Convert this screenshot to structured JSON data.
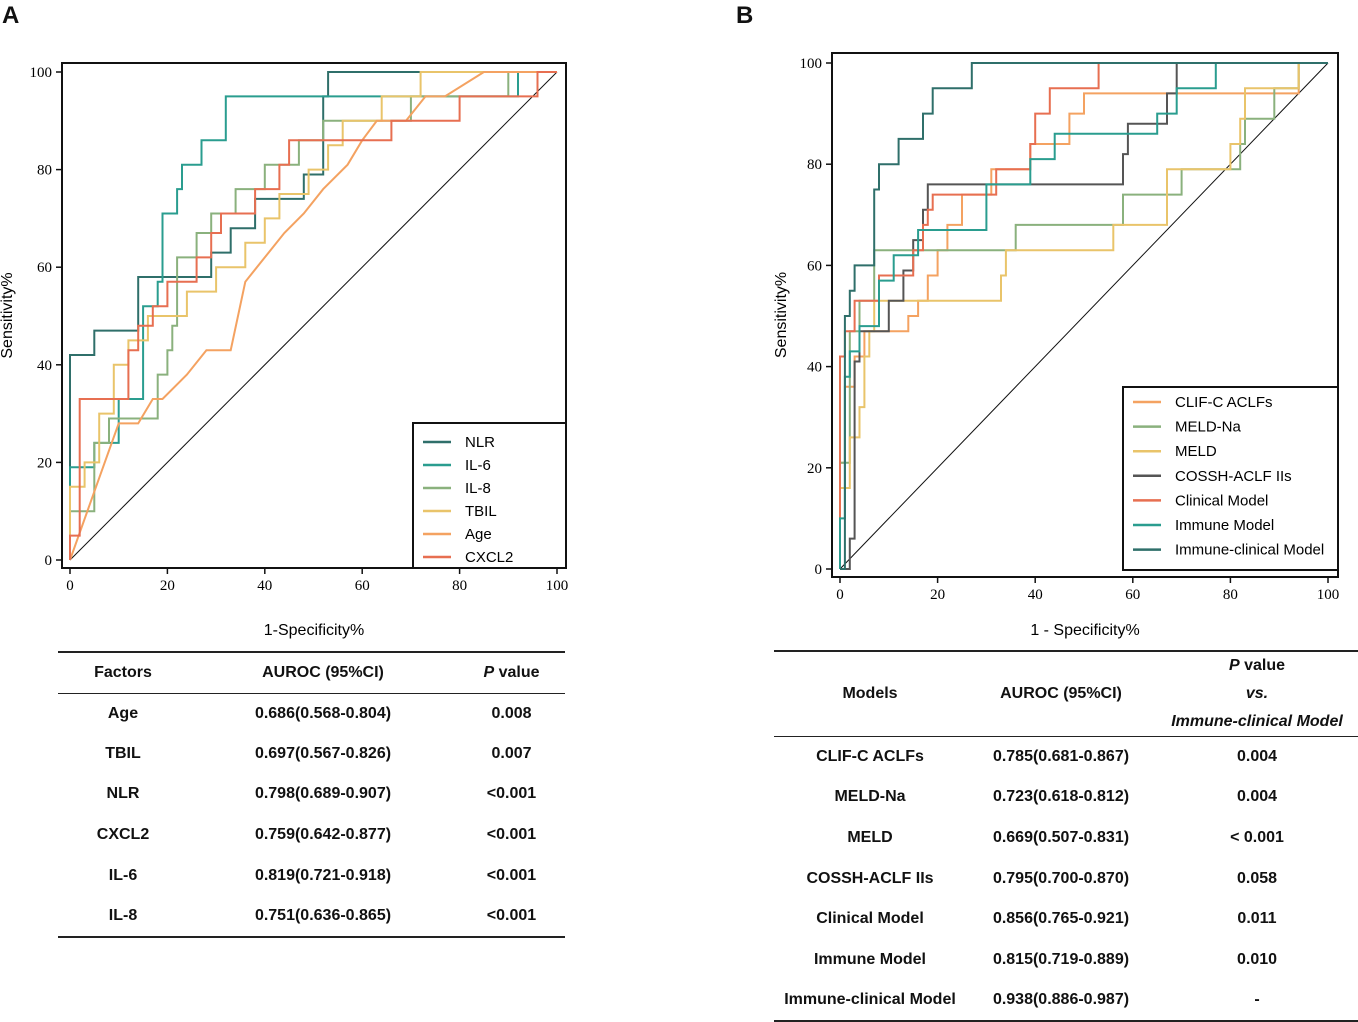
{
  "panels": {
    "a": "A",
    "b": "B"
  },
  "colors": {
    "NLR": "#2f6f6a",
    "IL-6": "#2a9d8f",
    "IL-8": "#8ab17d",
    "TBIL": "#e9c46a",
    "Age": "#f4a261",
    "CXCL2": "#e76f51",
    "CLIF-C ACLFs": "#f4a261",
    "MELD-Na": "#8ab17d",
    "MELD": "#e9c46a",
    "COSSH-ACLF IIs": "#555555",
    "Clinical Model": "#e76f51",
    "Immune Model": "#2a9d8f",
    "Immune-clinical Model": "#2f6f6a"
  },
  "chart_data": [
    {
      "type": "line",
      "title": "",
      "xlabel": "1-Specificity%",
      "ylabel": "Sensitivity%",
      "xlim": [
        0,
        100
      ],
      "ylim": [
        0,
        100
      ],
      "xticks": [
        "0",
        "20",
        "40",
        "60",
        "80",
        "100"
      ],
      "yticks": [
        "0",
        "20",
        "40",
        "60",
        "80",
        "100"
      ],
      "legend_position": "bottom-right",
      "series": [
        {
          "name": "NLR",
          "x": [
            0,
            0,
            5,
            5,
            14,
            14,
            19,
            19,
            29,
            29,
            33,
            33,
            38,
            38,
            48,
            48,
            52,
            52,
            53,
            53,
            95,
            95,
            100
          ],
          "y": [
            0,
            42,
            42,
            47,
            47,
            58,
            58,
            58,
            58,
            63,
            63,
            68,
            68,
            74,
            74,
            79,
            79,
            95,
            95,
            100,
            100,
            100,
            100
          ]
        },
        {
          "name": "IL-6",
          "x": [
            0,
            0,
            5,
            5,
            10,
            10,
            15,
            15,
            18,
            18,
            19,
            19,
            22,
            22,
            23,
            23,
            27,
            27,
            32,
            32,
            92,
            92,
            100
          ],
          "y": [
            0,
            19,
            19,
            24,
            24,
            33,
            33,
            52,
            52,
            57,
            57,
            71,
            71,
            76,
            76,
            81,
            81,
            86,
            86,
            95,
            95,
            100,
            100
          ]
        },
        {
          "name": "IL-8",
          "x": [
            0,
            0,
            5,
            5,
            8,
            8,
            12,
            12,
            18,
            18,
            20,
            20,
            21,
            21,
            22,
            22,
            26,
            26,
            29,
            29,
            34,
            34,
            40,
            40,
            47,
            47,
            52,
            52,
            54,
            54,
            70,
            70,
            90,
            90,
            95,
            95,
            100
          ],
          "y": [
            0,
            10,
            10,
            24,
            24,
            29,
            29,
            29,
            29,
            38,
            38,
            43,
            43,
            48,
            48,
            62,
            62,
            67,
            67,
            71,
            71,
            76,
            76,
            81,
            81,
            86,
            86,
            90,
            90,
            90,
            90,
            95,
            95,
            100,
            100,
            100,
            100
          ]
        },
        {
          "name": "TBIL",
          "x": [
            0,
            0,
            3,
            3,
            6,
            6,
            9,
            9,
            12,
            12,
            16,
            16,
            19,
            19,
            24,
            24,
            30,
            30,
            36,
            36,
            40,
            40,
            43,
            43,
            49,
            49,
            53,
            53,
            56,
            56,
            64,
            64,
            72,
            72,
            86,
            86,
            100
          ],
          "y": [
            0,
            15,
            15,
            20,
            20,
            30,
            30,
            40,
            40,
            45,
            45,
            50,
            50,
            50,
            50,
            55,
            55,
            60,
            60,
            65,
            65,
            70,
            70,
            75,
            75,
            80,
            80,
            85,
            85,
            90,
            90,
            95,
            95,
            100,
            100,
            100,
            100
          ]
        },
        {
          "name": "Age",
          "x": [
            0,
            5,
            5,
            10,
            10,
            14,
            14,
            17,
            17,
            19,
            19,
            24,
            24,
            28,
            28,
            33,
            33,
            36,
            36,
            40,
            40,
            44,
            44,
            48,
            48,
            52,
            52,
            57,
            57,
            60,
            60,
            63,
            63,
            69,
            69,
            73,
            73,
            77,
            77,
            85,
            85,
            100
          ],
          "y": [
            0,
            14,
            14,
            28,
            28,
            28,
            28,
            33,
            33,
            33,
            33,
            38,
            38,
            43,
            43,
            43,
            43,
            57,
            57,
            62,
            62,
            67,
            67,
            71,
            71,
            76,
            76,
            81,
            81,
            86,
            86,
            90,
            90,
            90,
            90,
            95,
            95,
            95,
            95,
            100,
            100,
            100
          ]
        },
        {
          "name": "CXCL2",
          "x": [
            0,
            0,
            2,
            2,
            12,
            12,
            14,
            14,
            17,
            17,
            20,
            20,
            26,
            26,
            29,
            29,
            31,
            31,
            38,
            38,
            43,
            43,
            45,
            45,
            53,
            53,
            57,
            57,
            63,
            63,
            66,
            66,
            72,
            72,
            80,
            80,
            96,
            96,
            100
          ],
          "y": [
            0,
            5,
            5,
            33,
            33,
            43,
            43,
            48,
            48,
            52,
            52,
            57,
            57,
            62,
            62,
            67,
            67,
            71,
            71,
            76,
            76,
            81,
            81,
            86,
            86,
            86,
            86,
            86,
            86,
            86,
            86,
            90,
            90,
            90,
            90,
            95,
            95,
            100,
            100
          ]
        }
      ]
    },
    {
      "type": "line",
      "title": "",
      "xlabel": "1 - Specificity%",
      "ylabel": "Sensitivity%",
      "xlim": [
        0,
        100
      ],
      "ylim": [
        0,
        100
      ],
      "xticks": [
        "0",
        "20",
        "40",
        "60",
        "80",
        "100"
      ],
      "yticks": [
        "0",
        "20",
        "40",
        "60",
        "80",
        "100"
      ],
      "legend_position": "bottom-right",
      "series": [
        {
          "name": "CLIF-C ACLFs",
          "x": [
            0,
            0,
            1,
            1,
            3,
            3,
            5,
            5,
            8,
            8,
            11,
            11,
            14,
            14,
            16,
            16,
            18,
            18,
            20,
            20,
            22,
            22,
            25,
            25,
            31,
            31,
            35,
            35,
            39,
            39,
            44,
            44,
            47,
            47,
            50,
            50,
            53,
            53,
            56,
            56,
            86,
            86,
            94,
            94,
            100
          ],
          "y": [
            0,
            21,
            21,
            36,
            36,
            42,
            42,
            47,
            47,
            47,
            47,
            47,
            47,
            50,
            50,
            53,
            53,
            58,
            58,
            63,
            63,
            68,
            68,
            74,
            74,
            79,
            79,
            79,
            79,
            84,
            84,
            84,
            84,
            90,
            90,
            94,
            94,
            94,
            94,
            94,
            94,
            94,
            94,
            100,
            100
          ]
        },
        {
          "name": "MELD-Na",
          "x": [
            0,
            0,
            2,
            2,
            4,
            4,
            7,
            7,
            19,
            19,
            36,
            36,
            58,
            58,
            70,
            70,
            82,
            82,
            83,
            83,
            89,
            89,
            94,
            94,
            100
          ],
          "y": [
            0,
            21,
            21,
            47,
            47,
            53,
            53,
            63,
            63,
            63,
            63,
            68,
            68,
            74,
            74,
            79,
            79,
            84,
            84,
            89,
            89,
            95,
            95,
            100,
            100
          ]
        },
        {
          "name": "MELD",
          "x": [
            0,
            0,
            2,
            2,
            4,
            4,
            5,
            5,
            6,
            6,
            7,
            7,
            9,
            9,
            11,
            11,
            13,
            13,
            20,
            20,
            25,
            25,
            33,
            33,
            34,
            34,
            56,
            56,
            67,
            67,
            71,
            71,
            80,
            80,
            82,
            82,
            83,
            83,
            94,
            94,
            100
          ],
          "y": [
            0,
            16,
            16,
            26,
            26,
            32,
            32,
            42,
            42,
            47,
            47,
            53,
            53,
            53,
            53,
            53,
            53,
            53,
            53,
            53,
            53,
            53,
            53,
            58,
            58,
            63,
            63,
            68,
            68,
            79,
            79,
            79,
            79,
            84,
            84,
            89,
            89,
            95,
            95,
            100,
            100
          ]
        },
        {
          "name": "COSSH-ACLF IIs",
          "x": [
            0,
            0,
            2,
            2,
            3,
            3,
            4,
            4,
            6,
            6,
            8,
            8,
            10,
            10,
            13,
            13,
            15,
            15,
            17,
            17,
            18,
            18,
            19,
            19,
            22,
            22,
            58,
            58,
            59,
            59,
            60,
            60,
            63,
            63,
            65,
            65,
            67,
            67,
            68,
            68,
            69,
            69,
            100
          ],
          "y": [
            0,
            0,
            0,
            6,
            6,
            41,
            41,
            47,
            47,
            47,
            47,
            47,
            47,
            53,
            53,
            59,
            59,
            65,
            65,
            71,
            71,
            76,
            76,
            76,
            76,
            76,
            76,
            82,
            82,
            88,
            88,
            88,
            88,
            88,
            88,
            88,
            88,
            94,
            94,
            94,
            94,
            100,
            100
          ]
        },
        {
          "name": "Clinical Model",
          "x": [
            0,
            0,
            1,
            1,
            3,
            3,
            5,
            5,
            7,
            7,
            8,
            8,
            12,
            12,
            15,
            15,
            17,
            17,
            18,
            18,
            19,
            19,
            29,
            29,
            32,
            32,
            37,
            37,
            39,
            39,
            40,
            40,
            43,
            43,
            48,
            48,
            53,
            53,
            100
          ],
          "y": [
            0,
            42,
            42,
            47,
            47,
            53,
            53,
            53,
            53,
            53,
            53,
            58,
            58,
            58,
            58,
            63,
            63,
            68,
            68,
            71,
            71,
            74,
            74,
            74,
            74,
            79,
            79,
            79,
            79,
            84,
            84,
            90,
            90,
            95,
            95,
            95,
            95,
            100,
            100
          ]
        },
        {
          "name": "Immune Model",
          "x": [
            0,
            0,
            1,
            1,
            2,
            2,
            3,
            3,
            4,
            4,
            6,
            6,
            8,
            8,
            11,
            11,
            13,
            13,
            16,
            16,
            19,
            19,
            23,
            23,
            30,
            30,
            39,
            39,
            41,
            41,
            44,
            44,
            52,
            52,
            56,
            56,
            62,
            62,
            65,
            65,
            69,
            69,
            74,
            74,
            77,
            77,
            100
          ],
          "y": [
            0,
            10,
            10,
            38,
            38,
            43,
            43,
            43,
            43,
            48,
            48,
            48,
            48,
            57,
            57,
            62,
            62,
            62,
            62,
            67,
            67,
            67,
            67,
            67,
            67,
            76,
            76,
            81,
            81,
            81,
            81,
            86,
            86,
            86,
            86,
            86,
            86,
            86,
            86,
            90,
            90,
            95,
            95,
            95,
            95,
            100,
            100
          ]
        },
        {
          "name": "Immune-clinical Model",
          "x": [
            0,
            0,
            1,
            1,
            2,
            2,
            3,
            3,
            5,
            5,
            7,
            7,
            8,
            8,
            9,
            9,
            10,
            10,
            12,
            12,
            15,
            15,
            17,
            17,
            19,
            19,
            20,
            20,
            21,
            21,
            25,
            25,
            27,
            27,
            100
          ],
          "y": [
            0,
            0,
            0,
            50,
            50,
            55,
            55,
            60,
            60,
            60,
            60,
            75,
            75,
            80,
            80,
            80,
            80,
            80,
            80,
            85,
            85,
            85,
            85,
            90,
            90,
            95,
            95,
            95,
            95,
            95,
            95,
            95,
            95,
            100,
            100
          ]
        }
      ]
    }
  ],
  "tableA": {
    "headers": {
      "factors": "Factors",
      "auroc": "AUROC (95%CI)",
      "p_italic": "P",
      "p_rest": " value"
    },
    "rows": [
      {
        "factor": "Age",
        "auroc": "0.686(0.568-0.804)",
        "p": "0.008"
      },
      {
        "factor": "TBIL",
        "auroc": "0.697(0.567-0.826)",
        "p": "0.007"
      },
      {
        "factor": "NLR",
        "auroc": "0.798(0.689-0.907)",
        "p": "<0.001"
      },
      {
        "factor": "CXCL2",
        "auroc": "0.759(0.642-0.877)",
        "p": "<0.001"
      },
      {
        "factor": "IL-6",
        "auroc": "0.819(0.721-0.918)",
        "p": "<0.001"
      },
      {
        "factor": "IL-8",
        "auroc": "0.751(0.636-0.865)",
        "p": "<0.001"
      }
    ]
  },
  "tableB": {
    "headers": {
      "models": "Models",
      "auroc": "AUROC (95%CI)",
      "p_italic": "P",
      "p_rest": " value",
      "p_vs": "vs.",
      "p_model": "Immune-clinical Model"
    },
    "rows": [
      {
        "model": "CLIF-C ACLFs",
        "auroc": "0.785(0.681-0.867)",
        "p": "0.004"
      },
      {
        "model": "MELD-Na",
        "auroc": "0.723(0.618-0.812)",
        "p": "0.004"
      },
      {
        "model": "MELD",
        "auroc": "0.669(0.507-0.831)",
        "p": "< 0.001"
      },
      {
        "model": "COSSH-ACLF IIs",
        "auroc": "0.795(0.700-0.870)",
        "p": "0.058"
      },
      {
        "model": "Clinical Model",
        "auroc": "0.856(0.765-0.921)",
        "p": "0.011"
      },
      {
        "model": "Immune Model",
        "auroc": "0.815(0.719-0.889)",
        "p": "0.010"
      },
      {
        "model": "Immune-clinical Model",
        "auroc": "0.938(0.886-0.987)",
        "p": "-"
      }
    ]
  }
}
